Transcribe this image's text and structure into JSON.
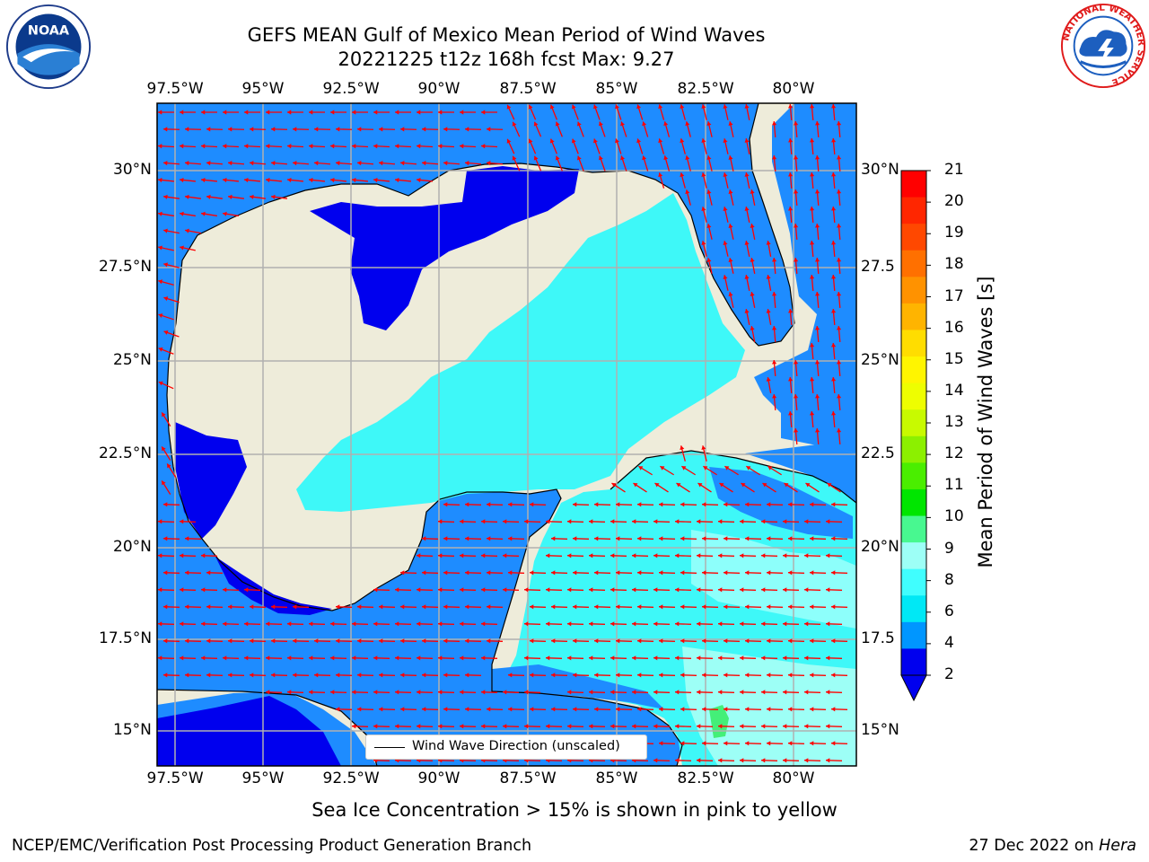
{
  "title": {
    "line1": "GEFS MEAN Gulf of Mexico Mean Period of Wind Waves",
    "line2": "20221225 t12z 168h fcst   Max: 9.27"
  },
  "map": {
    "lon_labels": [
      "97.5°W",
      "95°W",
      "92.5°W",
      "90°W",
      "87.5°W",
      "85°W",
      "82.5°W",
      "80°W"
    ],
    "lat_labels_left": [
      "30°N",
      "27.5°N",
      "25°N",
      "22.5°N",
      "20°N",
      "17.5°N",
      "15°N"
    ],
    "lat_labels_right": [
      "30°N",
      "27.5",
      "25°N",
      "22.5",
      "20°N",
      "17.5",
      "15°N"
    ],
    "field_colors": {
      "land": "#eeecda",
      "band_0_2": "#0000ee",
      "band_2_4": "#1e8cff",
      "band_4_6": "#3ef8f8",
      "band_6_8": "#8dfffb",
      "band_8_9": "#9dfff6",
      "band_9_10": "#44ef78",
      "arrows": "#ff0000",
      "grid": "#b0b0b0"
    },
    "legend_label": "Wind Wave Direction (unscaled)"
  },
  "colorbar": {
    "label": "Mean Period of Wind Waves [s]",
    "ticks": [
      "21",
      "20",
      "19",
      "18",
      "17",
      "16",
      "15",
      "14",
      "13",
      "12",
      "11",
      "10",
      "9",
      "8",
      "6",
      "4",
      "2"
    ],
    "colors": [
      "#ff0000",
      "#ff2600",
      "#ff4800",
      "#ff7000",
      "#ff9200",
      "#ffb400",
      "#ffdd00",
      "#fff500",
      "#eefe00",
      "#c8fa00",
      "#8cf000",
      "#4aee00",
      "#00e600",
      "#48f890",
      "#9dfff6",
      "#40fefe",
      "#00e8f5",
      "#0096ff",
      "#0000ee"
    ]
  },
  "logos": {
    "noaa": "NOAA",
    "nws_ring": "NATIONAL WEATHER SERVICE"
  },
  "caption": "Sea Ice Concentration > 15% is shown in pink to yellow",
  "footer": {
    "left": "NCEP/EMC/Verification Post Processing Product Generation Branch",
    "right_prefix": "27 Dec 2022 on ",
    "right_host": "Hera"
  }
}
